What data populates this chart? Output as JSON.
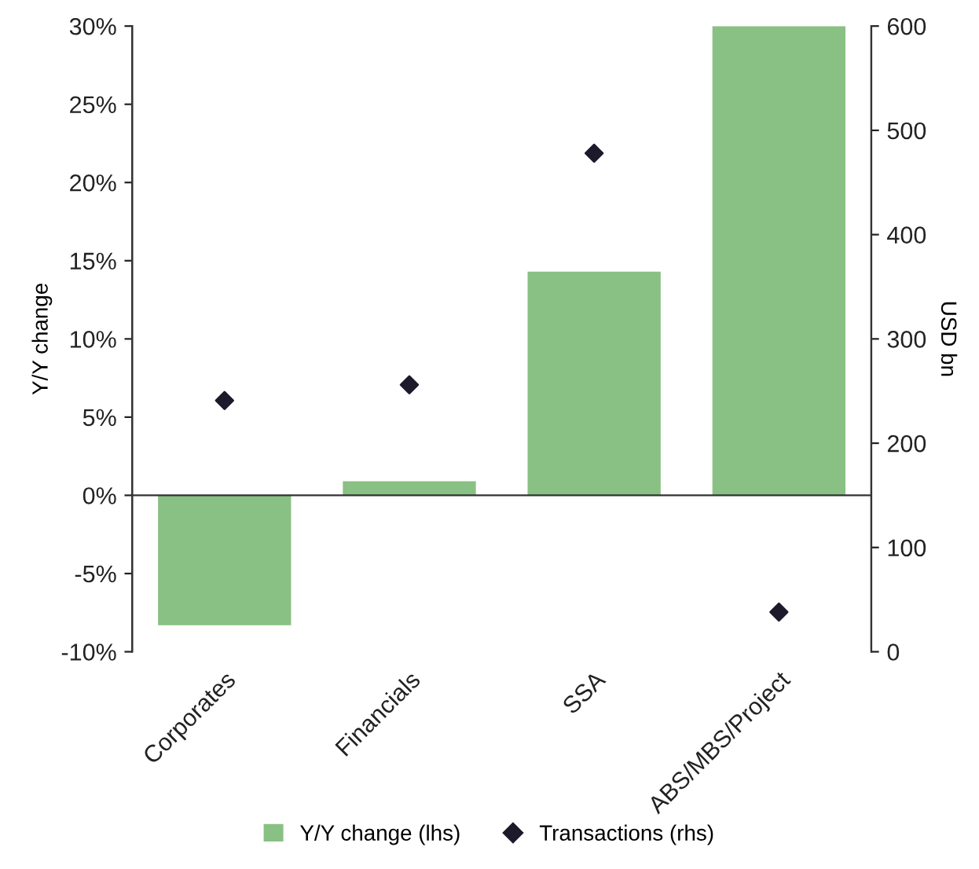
{
  "chart_data": {
    "type": "bar",
    "categories": [
      "Corporates",
      "Financials",
      "SSA",
      "ABS/MBS/Project"
    ],
    "ylabel": "Y/Y change",
    "y2label": "USD bn",
    "series": [
      {
        "name": "Y/Y change (lhs)",
        "color": "#89c083",
        "values": [
          -8.3,
          0.9,
          14.3,
          30
        ]
      },
      {
        "name": "Transactions (rhs)",
        "type": "scatter",
        "axis": "y2",
        "marker": "diamond",
        "color": "#1c1a2b",
        "values": [
          241,
          256,
          478,
          38
        ]
      }
    ],
    "ylim": [
      -10,
      30
    ],
    "yticks": [
      {
        "value": -10,
        "label": "-10%"
      },
      {
        "value": -5,
        "label": "-5%"
      },
      {
        "value": 0,
        "label": "0%"
      },
      {
        "value": 5,
        "label": "5%"
      },
      {
        "value": 10,
        "label": "10%"
      },
      {
        "value": 15,
        "label": "15%"
      },
      {
        "value": 20,
        "label": "20%"
      },
      {
        "value": 25,
        "label": "25%"
      },
      {
        "value": 30,
        "label": "30%"
      }
    ],
    "y2lim": [
      0,
      600
    ],
    "y2ticks": [
      0,
      100,
      200,
      300,
      400,
      500,
      600
    ],
    "legend": "bottom"
  }
}
